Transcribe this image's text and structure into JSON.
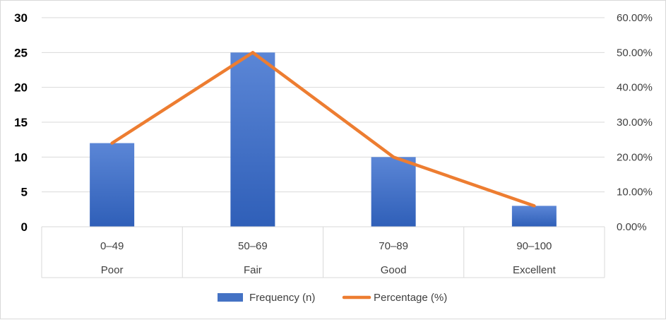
{
  "chart_data": {
    "type": "bar",
    "categories": [
      {
        "range": "0–49",
        "label": "Poor"
      },
      {
        "range": "50–69",
        "label": "Fair"
      },
      {
        "range": "70–89",
        "label": "Good"
      },
      {
        "range": "90–100",
        "label": "Excellent"
      }
    ],
    "series": [
      {
        "name": "Frequency (n)",
        "type": "bar",
        "axis": "left",
        "color": "#4472C4",
        "values": [
          12,
          25,
          10,
          3
        ]
      },
      {
        "name": "Percentage (%)",
        "type": "line",
        "axis": "right",
        "color": "#ED7D31",
        "values": [
          24,
          50,
          20,
          6
        ]
      }
    ],
    "y_left": {
      "min": 0,
      "max": 30,
      "step": 5,
      "ticks": [
        "0",
        "5",
        "10",
        "15",
        "20",
        "25",
        "30"
      ]
    },
    "y_right": {
      "min": 0,
      "max": 60,
      "step": 10,
      "ticks": [
        "0.00%",
        "10.00%",
        "20.00%",
        "30.00%",
        "40.00%",
        "50.00%",
        "60.00%"
      ]
    },
    "grid": true,
    "legend_position": "bottom"
  }
}
